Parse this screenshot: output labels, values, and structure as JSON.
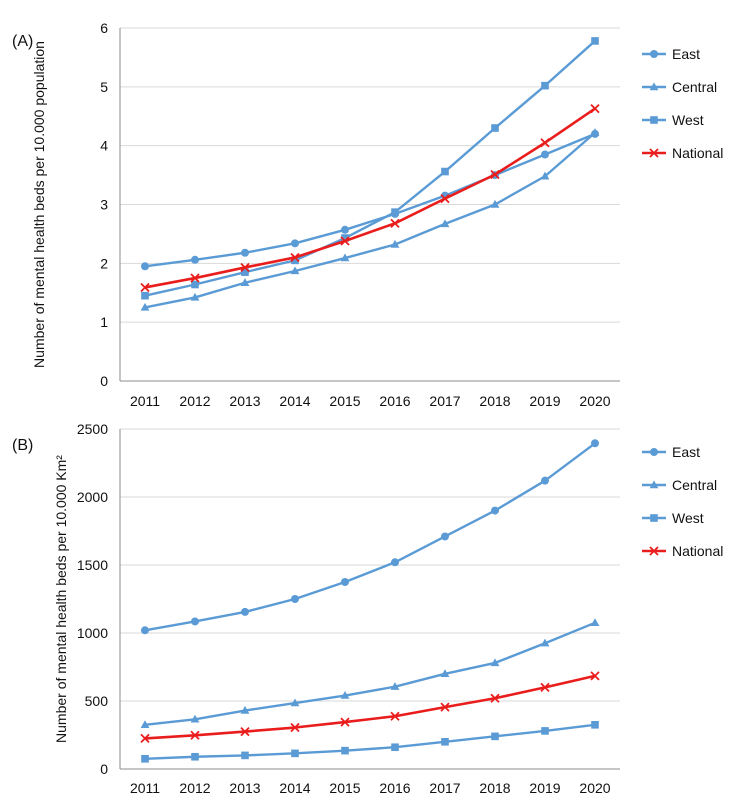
{
  "chart_data": [
    {
      "type": "line",
      "panel_label": "(A)",
      "ylabel": "Number of mental health beds per 10.000 population",
      "xlabel": "",
      "categories": [
        "2011",
        "2012",
        "2013",
        "2014",
        "2015",
        "2016",
        "2017",
        "2018",
        "2019",
        "2020"
      ],
      "ylim": [
        0,
        6
      ],
      "yticks": [
        0,
        1,
        2,
        3,
        4,
        5,
        6
      ],
      "grid": true,
      "legend": "right",
      "series": [
        {
          "name": "East",
          "marker": "circle",
          "color": "#5b9bd5",
          "values": [
            1.95,
            2.06,
            2.18,
            2.34,
            2.57,
            2.84,
            3.15,
            3.5,
            3.85,
            4.2
          ]
        },
        {
          "name": "Central",
          "marker": "triangle",
          "color": "#5b9bd5",
          "values": [
            1.25,
            1.42,
            1.67,
            1.87,
            2.09,
            2.32,
            2.67,
            3.0,
            3.48,
            4.22
          ]
        },
        {
          "name": "West",
          "marker": "square",
          "color": "#5b9bd5",
          "values": [
            1.45,
            1.64,
            1.85,
            2.05,
            2.43,
            2.87,
            3.56,
            4.3,
            5.02,
            5.78
          ]
        },
        {
          "name": "National",
          "marker": "x",
          "color": "#ea1d1d",
          "values": [
            1.59,
            1.75,
            1.93,
            2.1,
            2.38,
            2.68,
            3.1,
            3.51,
            4.05,
            4.63
          ]
        }
      ]
    },
    {
      "type": "line",
      "panel_label": "(B)",
      "ylabel": "Number of mental health beds per 10.000 Km²",
      "xlabel": "",
      "categories": [
        "2011",
        "2012",
        "2013",
        "2014",
        "2015",
        "2016",
        "2017",
        "2018",
        "2019",
        "2020"
      ],
      "ylim": [
        0,
        2500
      ],
      "yticks": [
        0,
        500,
        1000,
        1500,
        2000,
        2500
      ],
      "grid": true,
      "legend": "right",
      "series": [
        {
          "name": "East",
          "marker": "circle",
          "color": "#5b9bd5",
          "values": [
            1020,
            1085,
            1155,
            1250,
            1375,
            1520,
            1710,
            1900,
            2120,
            2395
          ]
        },
        {
          "name": "Central",
          "marker": "triangle",
          "color": "#5b9bd5",
          "values": [
            325,
            365,
            430,
            485,
            540,
            605,
            700,
            780,
            925,
            1075
          ]
        },
        {
          "name": "West",
          "marker": "square",
          "color": "#5b9bd5",
          "values": [
            75,
            90,
            100,
            115,
            135,
            160,
            200,
            240,
            280,
            325
          ]
        },
        {
          "name": "National",
          "marker": "x",
          "color": "#ea1d1d",
          "values": [
            225,
            248,
            275,
            305,
            345,
            388,
            455,
            520,
            600,
            685
          ]
        }
      ]
    }
  ]
}
